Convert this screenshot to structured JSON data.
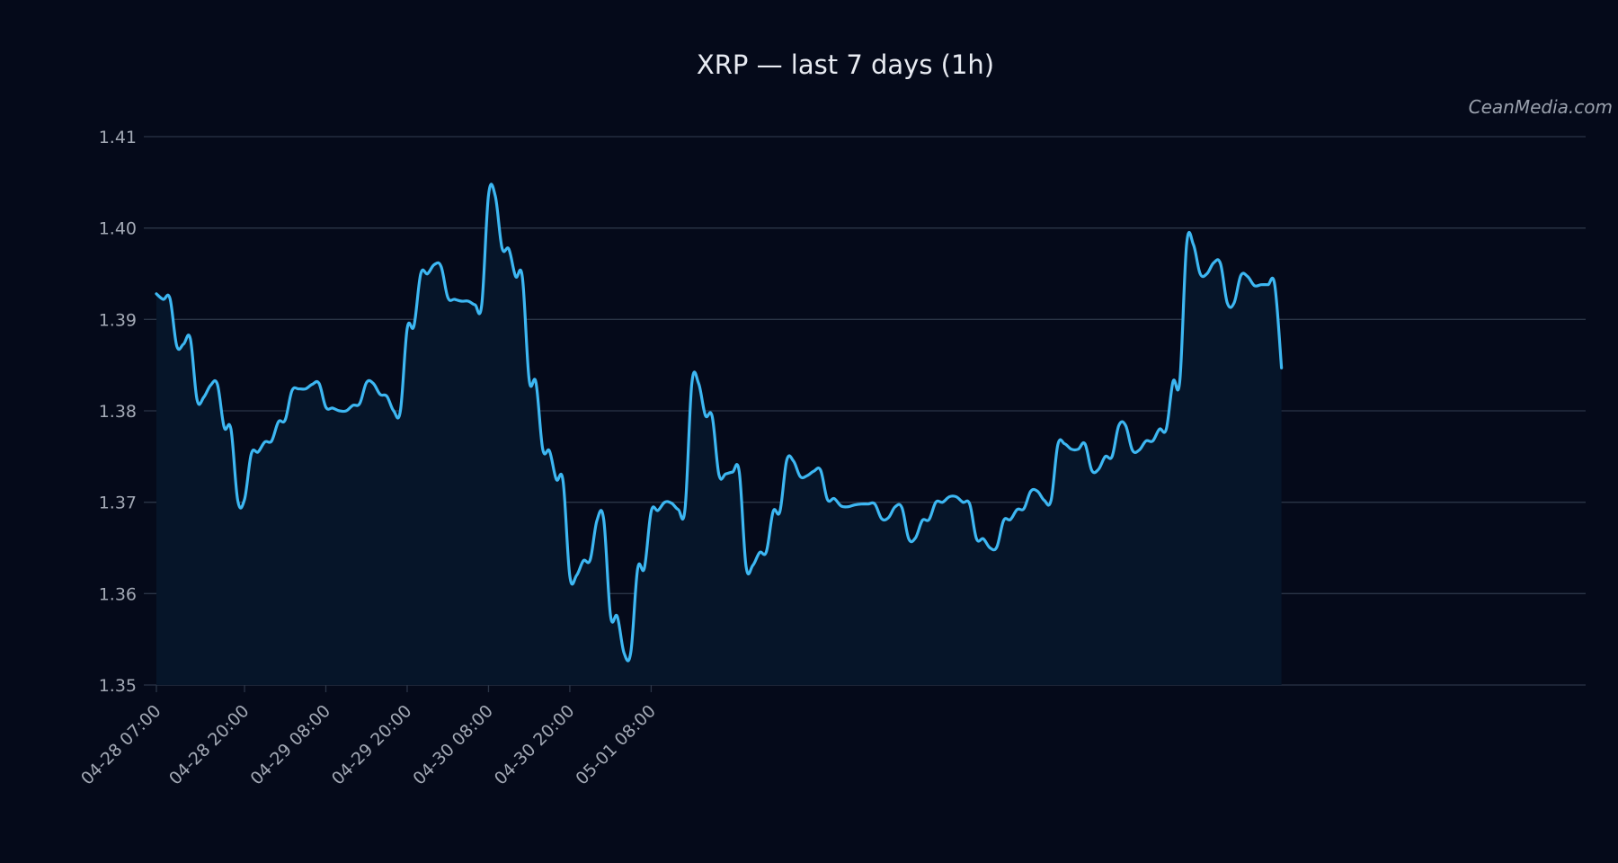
{
  "watermark": "CeanMedia.com",
  "colors": {
    "background": "#050a1a",
    "line": "#3db7f2",
    "area_fill": "#061529",
    "grid": "#2b3547",
    "text": "#e8ebf2",
    "tick_text": "#a3a9b5"
  },
  "chart_data": {
    "type": "area",
    "title": "XRP — last 7 days (1h)",
    "xlabel": "",
    "ylabel": "",
    "ylim": [
      1.35,
      1.41
    ],
    "grid": true,
    "y_ticks": [
      "1.35",
      "1.36",
      "1.37",
      "1.38",
      "1.39",
      "1.40",
      "1.41"
    ],
    "x_ticks": [
      "04-28 07:00",
      "04-28 20:00",
      "04-29 08:00",
      "04-29 20:00",
      "04-30 08:00",
      "04-30 20:00",
      "05-01 08:00"
    ],
    "x_start": "04-28 07:00",
    "x_step": "1h",
    "series": [
      {
        "values": [
          1.3928,
          1.3922,
          1.3923,
          1.3871,
          1.3873,
          1.3879,
          1.3812,
          1.3815,
          1.3828,
          1.3829,
          1.3782,
          1.378,
          1.3702,
          1.3703,
          1.3753,
          1.3755,
          1.3766,
          1.3767,
          1.3788,
          1.379,
          1.3822,
          1.3824,
          1.3824,
          1.3829,
          1.383,
          1.3804,
          1.3803,
          1.38,
          1.38,
          1.3806,
          1.3808,
          1.3831,
          1.383,
          1.3818,
          1.3816,
          1.38,
          1.38,
          1.389,
          1.3893,
          1.395,
          1.395,
          1.396,
          1.3958,
          1.3924,
          1.3922,
          1.392,
          1.392,
          1.3916,
          1.3916,
          1.4036,
          1.4035,
          1.3978,
          1.3977,
          1.3947,
          1.3946,
          1.3834,
          1.3831,
          1.3758,
          1.3756,
          1.3725,
          1.3723,
          1.3619,
          1.362,
          1.3636,
          1.3637,
          1.368,
          1.3681,
          1.3576,
          1.3575,
          1.3535,
          1.3536,
          1.3627,
          1.3628,
          1.369,
          1.3691,
          1.37,
          1.3699,
          1.3692,
          1.3693,
          1.383,
          1.383,
          1.3795,
          1.3794,
          1.373,
          1.3731,
          1.3733,
          1.3733,
          1.363,
          1.3631,
          1.3645,
          1.3646,
          1.369,
          1.369,
          1.3746,
          1.3745,
          1.3728,
          1.3729,
          1.3734,
          1.3735,
          1.3703,
          1.3704,
          1.3696,
          1.3695,
          1.3697,
          1.3698,
          1.3698,
          1.3698,
          1.3682,
          1.3683,
          1.3695,
          1.3694,
          1.366,
          1.3661,
          1.368,
          1.3681,
          1.37,
          1.37,
          1.3706,
          1.3706,
          1.37,
          1.3698,
          1.366,
          1.366,
          1.365,
          1.3651,
          1.368,
          1.3681,
          1.3692,
          1.3693,
          1.3712,
          1.3712,
          1.3702,
          1.3702,
          1.3763,
          1.3764,
          1.3758,
          1.3758,
          1.3764,
          1.3735,
          1.3736,
          1.375,
          1.375,
          1.3784,
          1.3784,
          1.3757,
          1.3757,
          1.3767,
          1.3767,
          1.378,
          1.378,
          1.3832,
          1.3833,
          1.3982,
          1.3982,
          1.395,
          1.395,
          1.3962,
          1.3961,
          1.3918,
          1.3918,
          1.3948,
          1.3947,
          1.3937,
          1.3938,
          1.3938,
          1.3938,
          1.3847
        ]
      }
    ]
  }
}
